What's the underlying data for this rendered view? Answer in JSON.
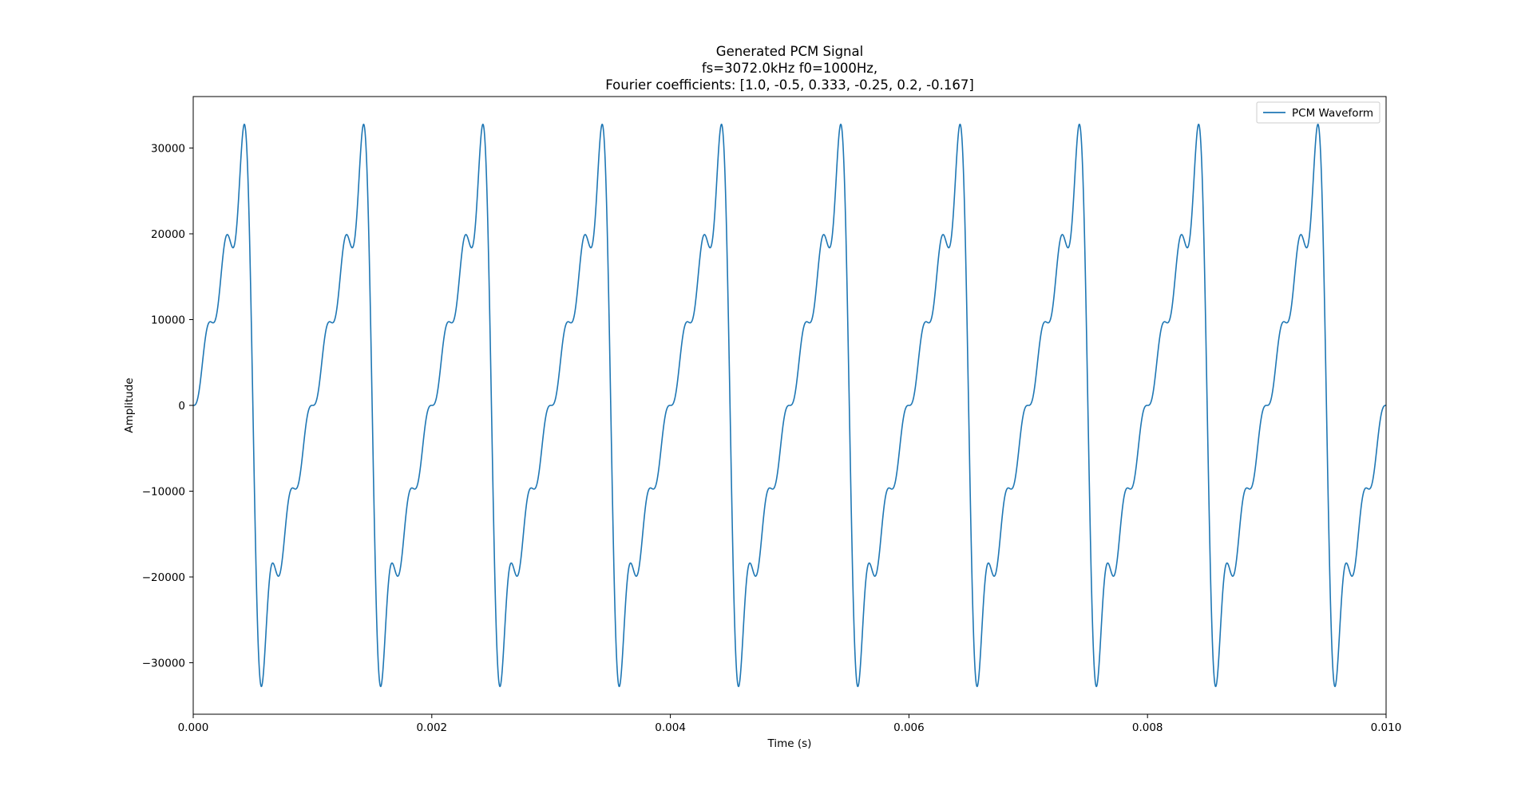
{
  "chart_data": {
    "type": "line",
    "title_lines": [
      "Generated PCM Signal",
      "fs=3072.0kHz f0=1000Hz,",
      "Fourier coefficients: [1.0, -0.5, 0.333, -0.25, 0.2, -0.167]"
    ],
    "xlabel": "Time (s)",
    "ylabel": "Amplitude",
    "xlim": [
      0,
      0.01
    ],
    "ylim": [
      -36000,
      36000
    ],
    "xticks": [
      0,
      0.002,
      0.004,
      0.006,
      0.008,
      0.01
    ],
    "xtick_labels": [
      "0.000",
      "0.002",
      "0.004",
      "0.006",
      "0.008",
      "0.010"
    ],
    "yticks": [
      -30000,
      -20000,
      -10000,
      0,
      10000,
      20000,
      30000
    ],
    "ytick_labels": [
      "−30000",
      "−20000",
      "−10000",
      "0",
      "10000",
      "20000",
      "30000"
    ],
    "grid": false,
    "legend_position": "top-right",
    "series": [
      {
        "name": "PCM Waveform",
        "color": "#1f77b4",
        "fundamental_hz": 1000,
        "coefficients": [
          1.0,
          -0.5,
          0.333,
          -0.25,
          0.2,
          -0.167
        ],
        "peak_amplitude": 32767
      }
    ]
  }
}
